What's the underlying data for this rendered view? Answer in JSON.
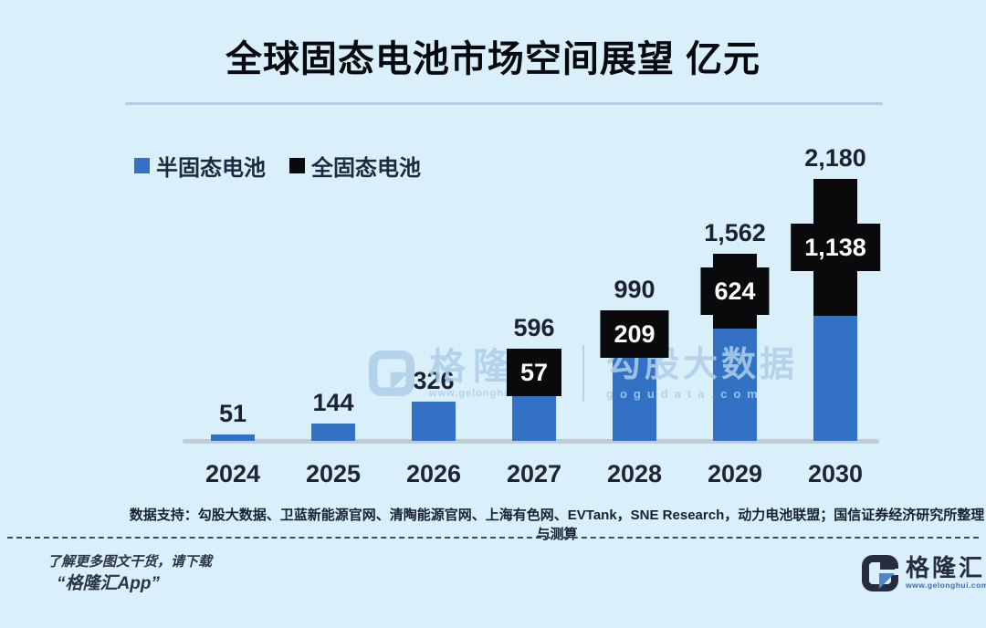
{
  "title": "全球固态电池市场空间展望 亿元",
  "legend": [
    {
      "label": "半固态电池",
      "color": "#3371c4"
    },
    {
      "label": "全固态电池",
      "color": "#0a0a0c"
    }
  ],
  "chart_data": {
    "type": "bar",
    "stacked": true,
    "title": "全球固态电池市场空间展望",
    "unit": "亿元",
    "categories": [
      "2024",
      "2025",
      "2026",
      "2027",
      "2028",
      "2029",
      "2030"
    ],
    "series": [
      {
        "name": "半固态电池",
        "color": "#3371c4",
        "values": [
          51,
          144,
          326,
          539,
          781,
          938,
          1042
        ]
      },
      {
        "name": "全固态电池",
        "color": "#0a0a0c",
        "values": [
          0,
          0,
          0,
          57,
          209,
          624,
          1138
        ]
      }
    ],
    "totals": [
      51,
      144,
      326,
      596,
      990,
      1562,
      2180
    ],
    "total_labels": [
      "51",
      "144",
      "326",
      "596",
      "990",
      "1,562",
      "2,180"
    ],
    "segment_labels": [
      null,
      null,
      null,
      "57",
      "209",
      "624",
      "1,138"
    ],
    "ylim": [
      0,
      2300
    ],
    "grid": false,
    "legend_position": "top-left"
  },
  "watermark": {
    "brand": "格隆汇",
    "brand_url": "www.gelonghui.com",
    "data_brand": "勾股大数据",
    "data_url": "gogudata.com"
  },
  "source_note": "数据支持：勾股大数据、卫蓝新能源官网、清陶能源官网、上海有色网、EVTank，SNE Research，动力电池联盟；国信证券经济研究所整理与测算",
  "footer": {
    "promo_line1": "了解更多图文干货，请下载",
    "promo_line2": "“格隆汇App”",
    "logo_text": "格隆汇",
    "logo_url": "www.gelonghui.com"
  }
}
